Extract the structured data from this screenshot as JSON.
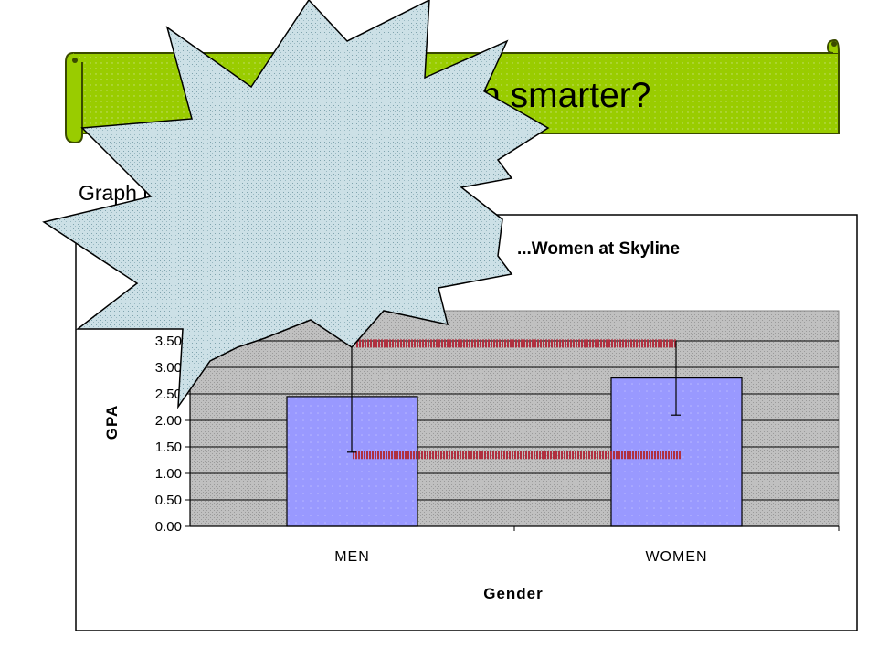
{
  "slide": {
    "title": "So, are women smarter?",
    "subtitle": "Graph results to find out:"
  },
  "colors": {
    "banner_green": "#99cc00",
    "bar_fill": "#9999ff",
    "plot_background": "#c0c0c0",
    "starburst_fill": "#cce0e6",
    "line_red": "#b0303f"
  },
  "chart_data": {
    "type": "bar",
    "title": "...Women at Skyline",
    "xlabel": "Gender",
    "ylabel": "GPA",
    "categories": [
      "MEN",
      "WOMEN"
    ],
    "series": [
      {
        "values": [
          2.45,
          2.8
        ]
      }
    ],
    "error_bars": [
      {
        "low": 1.4,
        "high": 3.5
      },
      {
        "low": 2.1,
        "high": 3.5
      }
    ],
    "reference_lines": [
      3.45,
      1.35
    ],
    "ylim": [
      0,
      4
    ],
    "yticks": [
      "0.00",
      "0.50",
      "1.00",
      "1.50",
      "2.00",
      "2.50",
      "3.00",
      "3.50"
    ],
    "grid": true,
    "legend": "none"
  }
}
